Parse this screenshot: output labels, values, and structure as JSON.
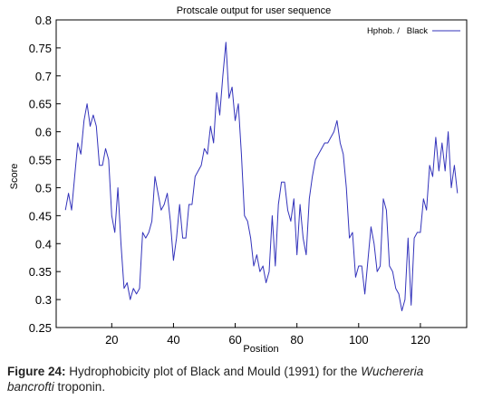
{
  "chart_data": {
    "type": "line",
    "title": "Protscale output for user sequence",
    "xlabel": "Position",
    "ylabel": "Score",
    "xlim": [
      2,
      135
    ],
    "ylim": [
      0.25,
      0.8
    ],
    "xticks": [
      20,
      40,
      60,
      80,
      100,
      120
    ],
    "yticks": [
      0.25,
      0.3,
      0.35,
      0.4,
      0.45,
      0.5,
      0.55,
      0.6,
      0.65,
      0.7,
      0.75,
      0.8
    ],
    "ytick_labels": [
      "0.25",
      "0.3",
      "0.35",
      "0.4",
      "0.45",
      "0.5",
      "0.55",
      "0.6",
      "0.65",
      "0.7",
      "0.75",
      "0.8"
    ],
    "legend_position": "top-right",
    "legend_label": "Hphob. /   Black",
    "grid": false,
    "line_color": "#3333bb",
    "series": [
      {
        "name": "Black",
        "x": [
          5,
          6,
          7,
          8,
          9,
          10,
          11,
          12,
          13,
          14,
          15,
          16,
          17,
          18,
          19,
          20,
          21,
          22,
          23,
          24,
          25,
          26,
          27,
          28,
          29,
          30,
          31,
          32,
          33,
          34,
          35,
          36,
          37,
          38,
          39,
          40,
          41,
          42,
          43,
          44,
          45,
          46,
          47,
          48,
          49,
          50,
          51,
          52,
          53,
          54,
          55,
          56,
          57,
          58,
          59,
          60,
          61,
          62,
          63,
          64,
          65,
          66,
          67,
          68,
          69,
          70,
          71,
          72,
          73,
          74,
          75,
          76,
          77,
          78,
          79,
          80,
          81,
          82,
          83,
          84,
          85,
          86,
          87,
          88,
          89,
          90,
          91,
          92,
          93,
          94,
          95,
          96,
          97,
          98,
          99,
          100,
          101,
          102,
          103,
          104,
          105,
          106,
          107,
          108,
          109,
          110,
          111,
          112,
          113,
          114,
          115,
          116,
          117,
          118,
          119,
          120,
          121,
          122,
          123,
          124,
          125,
          126,
          127,
          128,
          129,
          130,
          131,
          132
        ],
        "y": [
          0.46,
          0.49,
          0.46,
          0.52,
          0.58,
          0.56,
          0.62,
          0.65,
          0.61,
          0.63,
          0.61,
          0.54,
          0.54,
          0.57,
          0.55,
          0.45,
          0.42,
          0.5,
          0.4,
          0.32,
          0.33,
          0.3,
          0.32,
          0.31,
          0.32,
          0.42,
          0.41,
          0.42,
          0.44,
          0.52,
          0.49,
          0.46,
          0.47,
          0.49,
          0.44,
          0.37,
          0.41,
          0.47,
          0.41,
          0.41,
          0.47,
          0.47,
          0.52,
          0.53,
          0.54,
          0.57,
          0.56,
          0.61,
          0.58,
          0.67,
          0.63,
          0.7,
          0.76,
          0.66,
          0.68,
          0.62,
          0.65,
          0.56,
          0.45,
          0.44,
          0.41,
          0.36,
          0.38,
          0.35,
          0.36,
          0.33,
          0.35,
          0.45,
          0.36,
          0.47,
          0.51,
          0.51,
          0.46,
          0.44,
          0.48,
          0.38,
          0.47,
          0.41,
          0.38,
          0.48,
          0.52,
          0.55,
          0.56,
          0.57,
          0.58,
          0.58,
          0.59,
          0.6,
          0.62,
          0.58,
          0.56,
          0.5,
          0.41,
          0.42,
          0.34,
          0.36,
          0.36,
          0.31,
          0.37,
          0.43,
          0.4,
          0.35,
          0.36,
          0.48,
          0.46,
          0.36,
          0.35,
          0.32,
          0.31,
          0.28,
          0.3,
          0.41,
          0.29,
          0.41,
          0.42,
          0.42,
          0.48,
          0.46,
          0.54,
          0.52,
          0.59,
          0.53,
          0.58,
          0.53,
          0.6,
          0.5,
          0.54,
          0.49
        ]
      }
    ]
  },
  "caption": {
    "label": "Figure 24:",
    "text_a": " Hydrophobicity plot of Black and Mould (1991) for the ",
    "italic_a": "Wuchereria",
    "italic_b": "bancrofti",
    "text_b": " troponin."
  }
}
